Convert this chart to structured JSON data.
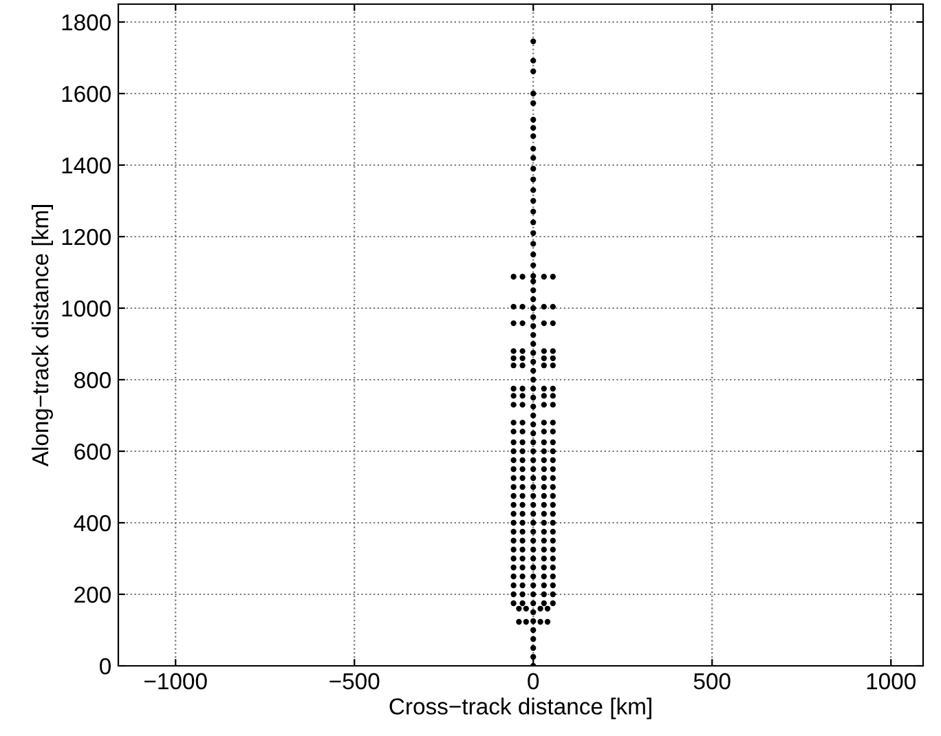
{
  "chart_data": {
    "type": "scatter",
    "xlabel": "Cross−track distance [km]",
    "ylabel": "Along−track distance [km]",
    "xlim": [
      -1160,
      1090
    ],
    "ylim": [
      0,
      1850
    ],
    "xticks": [
      {
        "value": -1000,
        "label": "−1000"
      },
      {
        "value": -500,
        "label": "−500"
      },
      0,
      500,
      1000
    ],
    "yticks": [
      0,
      200,
      400,
      600,
      800,
      1000,
      1200,
      1400,
      1600,
      1800
    ],
    "grid": true,
    "marker": "circle",
    "legend": false,
    "series": [
      {
        "color": "#000000",
        "x": [
          0,
          0,
          0,
          0,
          0,
          0,
          0,
          0,
          0,
          0,
          0,
          0,
          0,
          0,
          0,
          0,
          0,
          0,
          0,
          0,
          0,
          0,
          0,
          0,
          0,
          0,
          0,
          0,
          0,
          0,
          0,
          0,
          0,
          0,
          0,
          0,
          0,
          0,
          0,
          0,
          0,
          0,
          0,
          0,
          0,
          0,
          0,
          0,
          0,
          0,
          0,
          0,
          0,
          0,
          0,
          0,
          0,
          0,
          0,
          0,
          0,
          0,
          0,
          0,
          0
        ],
        "values": [
          0,
          25,
          50,
          75,
          100,
          125,
          150,
          175,
          200,
          225,
          250,
          275,
          300,
          325,
          350,
          375,
          400,
          425,
          450,
          475,
          500,
          525,
          550,
          575,
          600,
          625,
          650,
          675,
          700,
          725,
          750,
          775,
          800,
          825,
          850,
          875,
          900,
          925,
          950,
          975,
          1000,
          1025,
          1050,
          1075,
          1090,
          1120,
          1150,
          1180,
          1210,
          1240,
          1270,
          1300,
          1330,
          1360,
          1390,
          1420,
          1446,
          1481,
          1504,
          1527,
          1573,
          1600,
          1662,
          1692,
          1746
        ]
      },
      {
        "color": "#000000",
        "x": [
          -55,
          -30,
          30,
          55,
          -55,
          -30,
          30,
          55,
          -55,
          -30,
          30,
          55,
          -55,
          -30,
          30,
          55,
          -55,
          -30,
          30,
          55,
          -55,
          -30,
          30,
          55,
          -55,
          -30,
          30,
          55,
          -55,
          -30,
          30,
          55,
          -55,
          -30,
          30,
          55,
          -55,
          -30,
          30,
          55,
          -55,
          -30,
          30,
          55,
          -55,
          -30,
          30,
          55,
          -55,
          -30,
          30,
          55,
          -55,
          -30,
          30,
          55,
          -55,
          -30,
          30,
          55,
          -55,
          -30,
          30,
          55,
          -55,
          -30,
          30,
          55,
          -55,
          -30,
          30,
          55,
          -55,
          -30,
          30,
          55,
          -55,
          -30,
          30,
          55,
          -55,
          -30,
          30,
          55,
          -55,
          -30,
          30,
          55,
          -55,
          -30,
          30,
          55,
          -55,
          -30,
          30,
          55,
          -55,
          -30,
          30,
          55,
          -55,
          -30,
          30,
          55,
          -55,
          -30,
          30,
          55,
          -55,
          -30,
          30,
          55,
          -55,
          -30,
          30,
          55,
          -55,
          -30,
          30,
          55,
          -40,
          -20,
          20,
          40,
          -40,
          -20,
          20,
          40
        ],
        "values": [
          1088,
          1088,
          1088,
          1088,
          1004,
          1004,
          1004,
          1004,
          958,
          958,
          958,
          958,
          880,
          880,
          880,
          880,
          860,
          860,
          860,
          860,
          840,
          840,
          840,
          840,
          775,
          775,
          775,
          775,
          755,
          755,
          755,
          755,
          730,
          730,
          730,
          730,
          680,
          680,
          680,
          680,
          655,
          655,
          655,
          655,
          625,
          625,
          625,
          625,
          600,
          600,
          600,
          600,
          575,
          575,
          575,
          575,
          550,
          550,
          550,
          550,
          525,
          525,
          525,
          525,
          500,
          500,
          500,
          500,
          475,
          475,
          475,
          475,
          450,
          450,
          450,
          450,
          425,
          425,
          425,
          425,
          400,
          400,
          400,
          400,
          375,
          375,
          375,
          375,
          350,
          350,
          350,
          350,
          325,
          325,
          325,
          325,
          300,
          300,
          300,
          300,
          275,
          275,
          275,
          275,
          250,
          250,
          250,
          250,
          225,
          225,
          225,
          225,
          200,
          200,
          200,
          200,
          175,
          175,
          175,
          175,
          160,
          160,
          160,
          160,
          123,
          123,
          123,
          123
        ]
      }
    ]
  }
}
